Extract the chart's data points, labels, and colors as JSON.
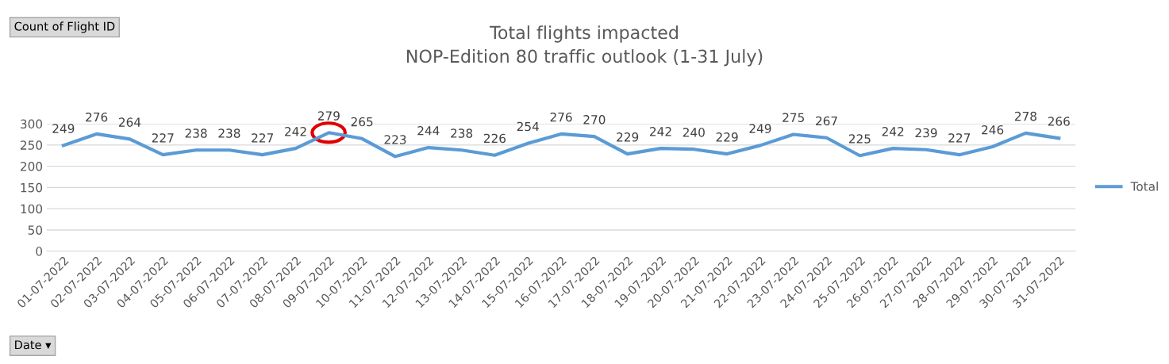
{
  "chart_data": {
    "type": "line",
    "title": "Total flights impacted\nNOP-Edition 80 traffic outlook (1-31 July)",
    "categories": [
      "01-07-2022",
      "02-07-2022",
      "03-07-2022",
      "04-07-2022",
      "05-07-2022",
      "06-07-2022",
      "07-07-2022",
      "08-07-2022",
      "09-07-2022",
      "10-07-2022",
      "11-07-2022",
      "12-07-2022",
      "13-07-2022",
      "14-07-2022",
      "15-07-2022",
      "16-07-2022",
      "17-07-2022",
      "18-07-2022",
      "19-07-2022",
      "20-07-2022",
      "21-07-2022",
      "22-07-2022",
      "23-07-2022",
      "24-07-2022",
      "25-07-2022",
      "26-07-2022",
      "27-07-2022",
      "28-07-2022",
      "29-07-2022",
      "30-07-2022",
      "31-07-2022"
    ],
    "series": [
      {
        "name": "Total",
        "color": "#5b9bd5",
        "values": [
          249,
          276,
          264,
          227,
          238,
          238,
          227,
          242,
          279,
          265,
          223,
          244,
          238,
          226,
          254,
          276,
          270,
          229,
          242,
          240,
          229,
          249,
          275,
          267,
          225,
          242,
          239,
          227,
          246,
          278,
          266
        ]
      }
    ],
    "ylim": [
      0,
      300
    ],
    "yticks": [
      0,
      50,
      100,
      150,
      200,
      250,
      300
    ],
    "grid": "y",
    "legend": "right",
    "data_labels": true,
    "marker": "none",
    "line_style": "solid",
    "annotations": [
      "Count of Flight ID",
      "Date ▾"
    ]
  }
}
